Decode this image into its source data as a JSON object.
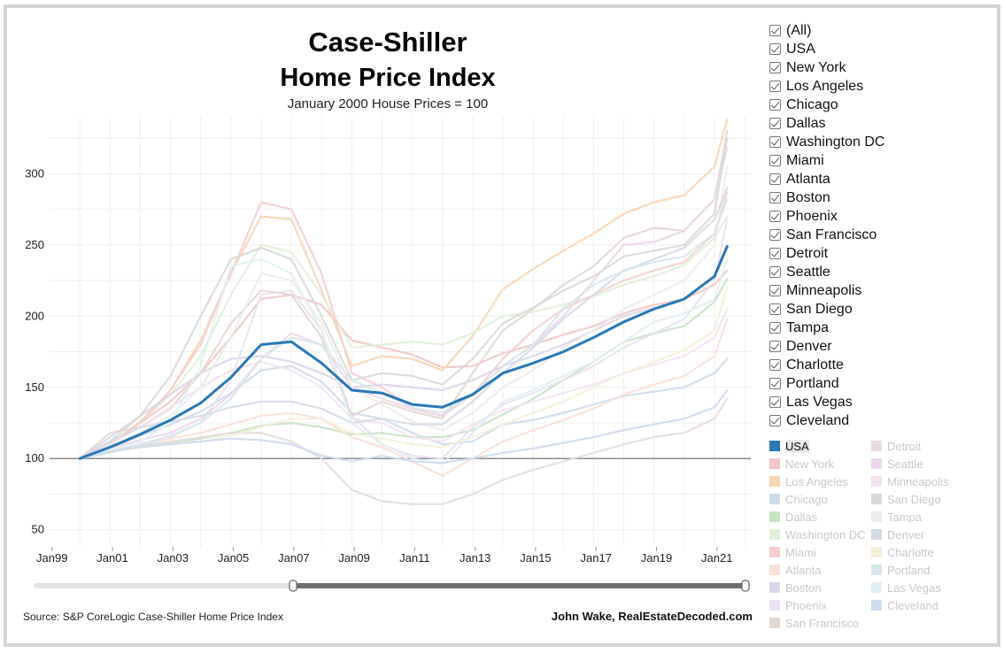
{
  "title_line1": "Case-Shiller",
  "title_line2": "Home Price Index",
  "subtitle": "January 2000 House Prices = 100",
  "source": "Source: S&P CoreLogic Case-Shiller Home Price Index",
  "credit": "John Wake, RealEstateDecoded.com",
  "filter": {
    "items": [
      "(All)",
      "USA",
      "New York",
      "Los Angeles",
      "Chicago",
      "Dallas",
      "Washington DC",
      "Miami",
      "Atlanta",
      "Boston",
      "Phoenix",
      "San Francisco",
      "Detroit",
      "Seattle",
      "Minneapolis",
      "San Diego",
      "Tampa",
      "Denver",
      "Charlotte",
      "Portland",
      "Las Vegas",
      "Cleveland"
    ]
  },
  "legend": {
    "items": [
      {
        "label": "USA",
        "color": "#2a78b5"
      },
      {
        "label": "New York",
        "color": "#f2c7c7"
      },
      {
        "label": "Los Angeles",
        "color": "#f7d6b5"
      },
      {
        "label": "Chicago",
        "color": "#cfdbe9"
      },
      {
        "label": "Dallas",
        "color": "#c8e2c4"
      },
      {
        "label": "Washington DC",
        "color": "#dff0d8"
      },
      {
        "label": "Miami",
        "color": "#f5cfcf"
      },
      {
        "label": "Atlanta",
        "color": "#f9e0d6"
      },
      {
        "label": "Boston",
        "color": "#dcd5ea"
      },
      {
        "label": "Phoenix",
        "color": "#e9e2f1"
      },
      {
        "label": "San Francisco",
        "color": "#e3d7d2"
      },
      {
        "label": "Detroit",
        "color": "#e8dcdc"
      },
      {
        "label": "Seattle",
        "color": "#ecd7ea"
      },
      {
        "label": "Minneapolis",
        "color": "#f3e3ef"
      },
      {
        "label": "San Diego",
        "color": "#d9d9d9"
      },
      {
        "label": "Tampa",
        "color": "#ececec"
      },
      {
        "label": "Denver",
        "color": "#d5dbe5"
      },
      {
        "label": "Charlotte",
        "color": "#f3efd8"
      },
      {
        "label": "Portland",
        "color": "#d7e7ec"
      },
      {
        "label": "Las Vegas",
        "color": "#e1f0f2"
      },
      {
        "label": "Cleveland",
        "color": "#cedcee"
      }
    ]
  },
  "chart_data": {
    "type": "line",
    "title": "Case-Shiller Home Price Index",
    "subtitle": "January 2000 House Prices = 100",
    "xlabel": "",
    "ylabel": "",
    "x_ticks": [
      "Jan99",
      "Jan01",
      "Jan03",
      "Jan05",
      "Jan07",
      "Jan09",
      "Jan11",
      "Jan13",
      "Jan15",
      "Jan17",
      "Jan19",
      "Jan21"
    ],
    "y_ticks": [
      50,
      100,
      150,
      200,
      250,
      300
    ],
    "ylim": [
      38,
      340
    ],
    "reference_line": 100,
    "x": [
      "2000-01",
      "2001-01",
      "2002-01",
      "2003-01",
      "2004-01",
      "2005-01",
      "2006-01",
      "2007-01",
      "2008-01",
      "2009-01",
      "2010-01",
      "2011-01",
      "2012-01",
      "2013-01",
      "2014-01",
      "2015-01",
      "2016-01",
      "2017-01",
      "2018-01",
      "2019-01",
      "2020-01",
      "2021-01",
      "2021-06"
    ],
    "series": [
      {
        "name": "USA",
        "color": "#2a78b5",
        "values": [
          100,
          108,
          117,
          127,
          139,
          157,
          180,
          182,
          167,
          148,
          146,
          138,
          136,
          145,
          160,
          167,
          175,
          185,
          196,
          205,
          212,
          228,
          249
        ]
      },
      {
        "name": "New York",
        "color": "#f2c7c7",
        "values": [
          100,
          111,
          125,
          140,
          160,
          185,
          212,
          215,
          208,
          183,
          178,
          173,
          164,
          165,
          174,
          180,
          187,
          193,
          202,
          208,
          212,
          222,
          232
        ]
      },
      {
        "name": "Los Angeles",
        "color": "#f7d6b5",
        "values": [
          100,
          110,
          126,
          148,
          183,
          230,
          270,
          268,
          218,
          165,
          172,
          170,
          162,
          186,
          219,
          233,
          246,
          258,
          272,
          280,
          285,
          305,
          338
        ]
      },
      {
        "name": "Chicago",
        "color": "#cfdbe9",
        "values": [
          100,
          107,
          116,
          124,
          133,
          146,
          162,
          165,
          154,
          132,
          128,
          118,
          110,
          112,
          124,
          127,
          132,
          138,
          144,
          147,
          150,
          160,
          170
        ]
      },
      {
        "name": "Dallas",
        "color": "#c8e2c4",
        "values": [
          100,
          104,
          109,
          111,
          114,
          118,
          123,
          125,
          122,
          117,
          118,
          115,
          115,
          120,
          131,
          142,
          155,
          168,
          182,
          188,
          193,
          210,
          226
        ]
      },
      {
        "name": "Washington DC",
        "color": "#dff0d8",
        "values": [
          100,
          110,
          125,
          145,
          172,
          215,
          250,
          245,
          215,
          178,
          180,
          182,
          180,
          188,
          200,
          203,
          208,
          214,
          222,
          228,
          236,
          255,
          270
        ]
      },
      {
        "name": "Miami",
        "color": "#f5cfcf",
        "values": [
          100,
          110,
          125,
          148,
          180,
          230,
          280,
          275,
          230,
          160,
          150,
          135,
          130,
          145,
          170,
          190,
          205,
          215,
          225,
          232,
          238,
          258,
          287
        ]
      },
      {
        "name": "Atlanta",
        "color": "#f9e0d6",
        "values": [
          100,
          105,
          110,
          114,
          118,
          124,
          130,
          132,
          128,
          115,
          108,
          98,
          88,
          100,
          112,
          120,
          127,
          135,
          145,
          152,
          158,
          172,
          198
        ]
      },
      {
        "name": "Boston",
        "color": "#dcd5ea",
        "values": [
          100,
          115,
          130,
          145,
          160,
          170,
          172,
          168,
          160,
          150,
          152,
          150,
          148,
          155,
          165,
          172,
          180,
          190,
          200,
          206,
          212,
          228,
          248
        ]
      },
      {
        "name": "Phoenix",
        "color": "#e9e2f1",
        "values": [
          100,
          105,
          110,
          115,
          125,
          155,
          215,
          218,
          190,
          130,
          110,
          102,
          100,
          122,
          138,
          146,
          155,
          165,
          178,
          188,
          198,
          225,
          268
        ]
      },
      {
        "name": "San Francisco",
        "color": "#e3d7d2",
        "values": [
          100,
          118,
          122,
          135,
          160,
          195,
          218,
          215,
          185,
          130,
          140,
          133,
          128,
          160,
          190,
          205,
          222,
          235,
          255,
          262,
          260,
          282,
          330
        ]
      },
      {
        "name": "Detroit",
        "color": "#e8dcdc",
        "values": [
          100,
          105,
          109,
          112,
          115,
          118,
          118,
          112,
          100,
          78,
          70,
          68,
          68,
          75,
          85,
          92,
          98,
          104,
          110,
          115,
          118,
          128,
          142
        ]
      },
      {
        "name": "Seattle",
        "color": "#ecd7ea",
        "values": [
          100,
          107,
          113,
          118,
          128,
          145,
          170,
          188,
          180,
          150,
          142,
          135,
          130,
          145,
          165,
          180,
          200,
          225,
          250,
          252,
          260,
          282,
          318
        ]
      },
      {
        "name": "Minneapolis",
        "color": "#f3e3ef",
        "values": [
          100,
          110,
          122,
          136,
          150,
          162,
          168,
          162,
          150,
          128,
          125,
          115,
          112,
          124,
          134,
          140,
          146,
          152,
          160,
          166,
          172,
          185,
          205
        ]
      },
      {
        "name": "San Diego",
        "color": "#d9d9d9",
        "values": [
          100,
          112,
          130,
          158,
          200,
          240,
          248,
          240,
          200,
          155,
          160,
          158,
          152,
          170,
          195,
          206,
          218,
          228,
          242,
          246,
          250,
          272,
          325
        ]
      },
      {
        "name": "Tampa",
        "color": "#ececec",
        "values": [
          100,
          108,
          118,
          130,
          150,
          185,
          230,
          225,
          195,
          150,
          138,
          126,
          120,
          132,
          150,
          162,
          178,
          190,
          205,
          215,
          225,
          250,
          305
        ]
      },
      {
        "name": "Denver",
        "color": "#d5dbe5",
        "values": [
          100,
          112,
          122,
          126,
          130,
          136,
          140,
          140,
          135,
          125,
          128,
          124,
          124,
          140,
          160,
          178,
          198,
          215,
          232,
          240,
          248,
          268,
          290
        ]
      },
      {
        "name": "Charlotte",
        "color": "#f3efd8",
        "values": [
          100,
          104,
          108,
          110,
          112,
          116,
          122,
          128,
          128,
          118,
          114,
          110,
          108,
          115,
          124,
          132,
          140,
          150,
          160,
          168,
          176,
          190,
          220
        ]
      },
      {
        "name": "Portland",
        "color": "#d7e7ec",
        "values": [
          100,
          104,
          110,
          116,
          125,
          142,
          170,
          185,
          180,
          155,
          146,
          136,
          132,
          145,
          165,
          180,
          205,
          222,
          232,
          238,
          242,
          258,
          282
        ]
      },
      {
        "name": "Las Vegas",
        "color": "#e1f0f2",
        "values": [
          100,
          106,
          112,
          125,
          165,
          235,
          240,
          230,
          190,
          125,
          110,
          100,
          96,
          118,
          140,
          148,
          158,
          168,
          182,
          196,
          202,
          212,
          240
        ]
      },
      {
        "name": "Cleveland",
        "color": "#cedcee",
        "values": [
          100,
          105,
          108,
          110,
          112,
          114,
          113,
          110,
          102,
          98,
          102,
          98,
          97,
          100,
          104,
          107,
          111,
          115,
          120,
          124,
          128,
          136,
          148
        ]
      }
    ]
  }
}
